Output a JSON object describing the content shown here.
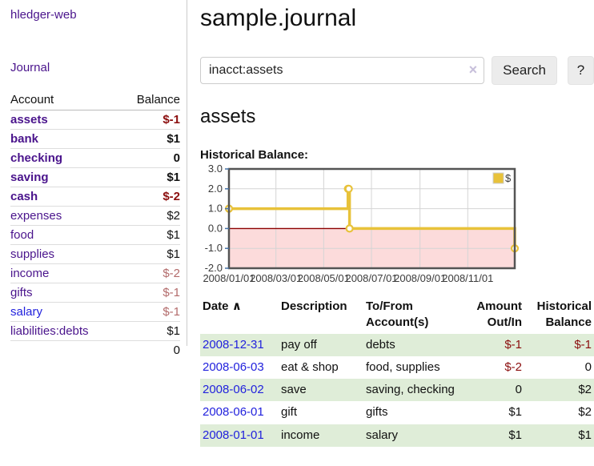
{
  "app": {
    "title": "hledger-web"
  },
  "sidebar": {
    "journal_link": "Journal",
    "accounts": {
      "header_account": "Account",
      "header_balance": "Balance",
      "rows": [
        {
          "name": "assets",
          "balance": "$-1"
        },
        {
          "name": "bank",
          "balance": "$1"
        },
        {
          "name": "checking",
          "balance": "0"
        },
        {
          "name": "saving",
          "balance": "$1"
        },
        {
          "name": "cash",
          "balance": "$-2"
        },
        {
          "name": "expenses",
          "balance": "$2"
        },
        {
          "name": "food",
          "balance": "$1"
        },
        {
          "name": "supplies",
          "balance": "$1"
        },
        {
          "name": "income",
          "balance": "$-2"
        },
        {
          "name": "gifts",
          "balance": "$-1"
        },
        {
          "name": "salary",
          "balance": "$-1"
        },
        {
          "name": "liabilities:debts",
          "balance": "$1"
        }
      ],
      "total": "0"
    }
  },
  "main": {
    "title": "sample.journal",
    "search": {
      "value": "inacct:assets",
      "clear_icon": "×",
      "search_button": "Search",
      "help_button": "?"
    },
    "account_heading": "assets",
    "chart_heading": "Historical Balance:"
  },
  "chart_data": {
    "type": "line",
    "title": "Historical Balance:",
    "legend": "$",
    "legend_position": "top-right",
    "step": true,
    "series": [
      {
        "name": "$",
        "points": [
          [
            "2008-01-01",
            1
          ],
          [
            "2008-06-01",
            2
          ],
          [
            "2008-06-02",
            2
          ],
          [
            "2008-06-03",
            0
          ],
          [
            "2008-12-31",
            -1
          ]
        ]
      }
    ],
    "x_range": [
      "2008-01-01",
      "2008-12-31"
    ],
    "ylim": [
      -2,
      3
    ],
    "ytick_values": [
      3,
      2,
      1,
      0,
      -1,
      -2
    ],
    "ytick_labels": [
      "3.0",
      "2.0",
      "1.0",
      "0.0",
      "-1.0",
      "-2.0"
    ],
    "xtick_dates": [
      "2008-01-01",
      "2008-03-01",
      "2008-05-01",
      "2008-07-01",
      "2008-09-01",
      "2008-11-01"
    ],
    "xtick_labels": [
      "2008/01/01",
      "2008/03/01",
      "2008/05/01",
      "2008/07/01",
      "2008/09/01",
      "2008/11/01"
    ],
    "grid": true,
    "colors": {
      "line": "#e8c23a",
      "marker_fill": "#ffffff",
      "negative_region": "#fcdbdb",
      "zero_line": "#8b0000",
      "border": "#545454",
      "gridline": "#d4d4d4",
      "tick": "#4572a7"
    }
  },
  "register": {
    "headers": {
      "date": "Date",
      "sort_icon": "∧",
      "description": "Description",
      "accounts": "To/From Account(s)",
      "amount": "Amount Out/In",
      "balance": "Historical Balance"
    },
    "rows": [
      {
        "date": "2008-12-31",
        "description": "pay off",
        "accounts": "debts",
        "amount": "$-1",
        "balance": "$-1"
      },
      {
        "date": "2008-06-03",
        "description": "eat & shop",
        "accounts": "food, supplies",
        "amount": "$-2",
        "balance": "0"
      },
      {
        "date": "2008-06-02",
        "description": "save",
        "accounts": "saving, checking",
        "amount": "0",
        "balance": "$2"
      },
      {
        "date": "2008-06-01",
        "description": "gift",
        "accounts": "gifts",
        "amount": "$1",
        "balance": "$2"
      },
      {
        "date": "2008-01-01",
        "description": "income",
        "accounts": "salary",
        "amount": "$1",
        "balance": "$1"
      }
    ]
  }
}
